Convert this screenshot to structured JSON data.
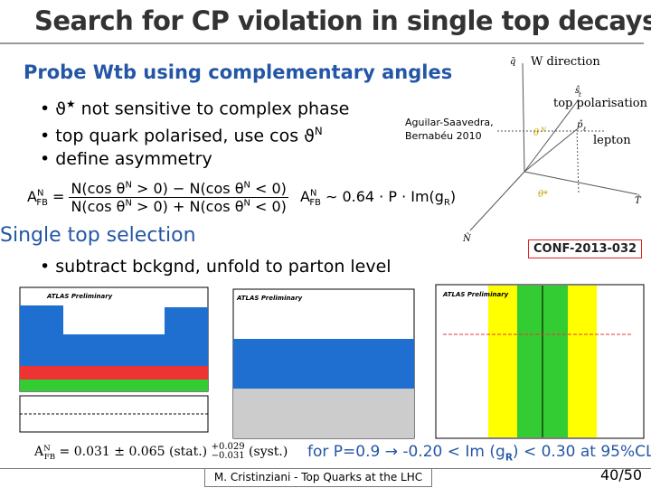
{
  "header": {
    "title": "Search for CP violation in single top decays"
  },
  "section1": {
    "heading": "Probe Wtb using complementary angles",
    "bullets": [
      [
        "ϑ",
        "★",
        " not sensitive to complex phase"
      ],
      [
        "top quark polarised, use cos ϑ",
        "N"
      ],
      [
        "define asymmetry"
      ]
    ],
    "citation": [
      "Aguilar-Saavedra,",
      "Bernabéu 2010"
    ],
    "asymmetry": {
      "lhs": [
        "A",
        "N",
        "FB"
      ],
      "numerator": [
        "N(cos θ",
        "N",
        " > 0) − N(cos θ",
        "N",
        " < 0)"
      ],
      "denominator": [
        "N(cos θ",
        "N",
        " > 0) + N(cos θ",
        "N",
        " < 0)"
      ],
      "approx": [
        "A",
        "N",
        "FB",
        " ∼ 0.64 · P · Im(g",
        "R",
        ")"
      ]
    }
  },
  "diagram": {
    "labels": [
      "q̄",
      "W direction",
      "ŝ",
      "t",
      "top polarisation",
      "p̂",
      "ℓ",
      "lepton",
      "θ*",
      "θ",
      "N",
      "N̂",
      "T̂"
    ]
  },
  "reference": "CONF-2013-032",
  "section2": {
    "heading": "Single top selection",
    "bullets": [
      "subtract bckgnd, unfold to parton level"
    ]
  },
  "plots": {
    "labels": [
      "ATLAS Preliminary",
      "ATLAS Preliminary",
      "ATLAS Preliminary"
    ]
  },
  "result": {
    "measurement": [
      "A",
      "N",
      "FB",
      " = 0.031 ± 0.065 (stat.) ",
      "+0.029",
      "−0.031",
      " (syst.)"
    ],
    "limit": [
      "for P=0.9 → -0.20 < Im (g",
      "R",
      ") < 0.30  at 95%CL"
    ]
  },
  "footer": {
    "author": "M. Cristinziani - Top Quarks at the LHC",
    "page": "40/50"
  }
}
